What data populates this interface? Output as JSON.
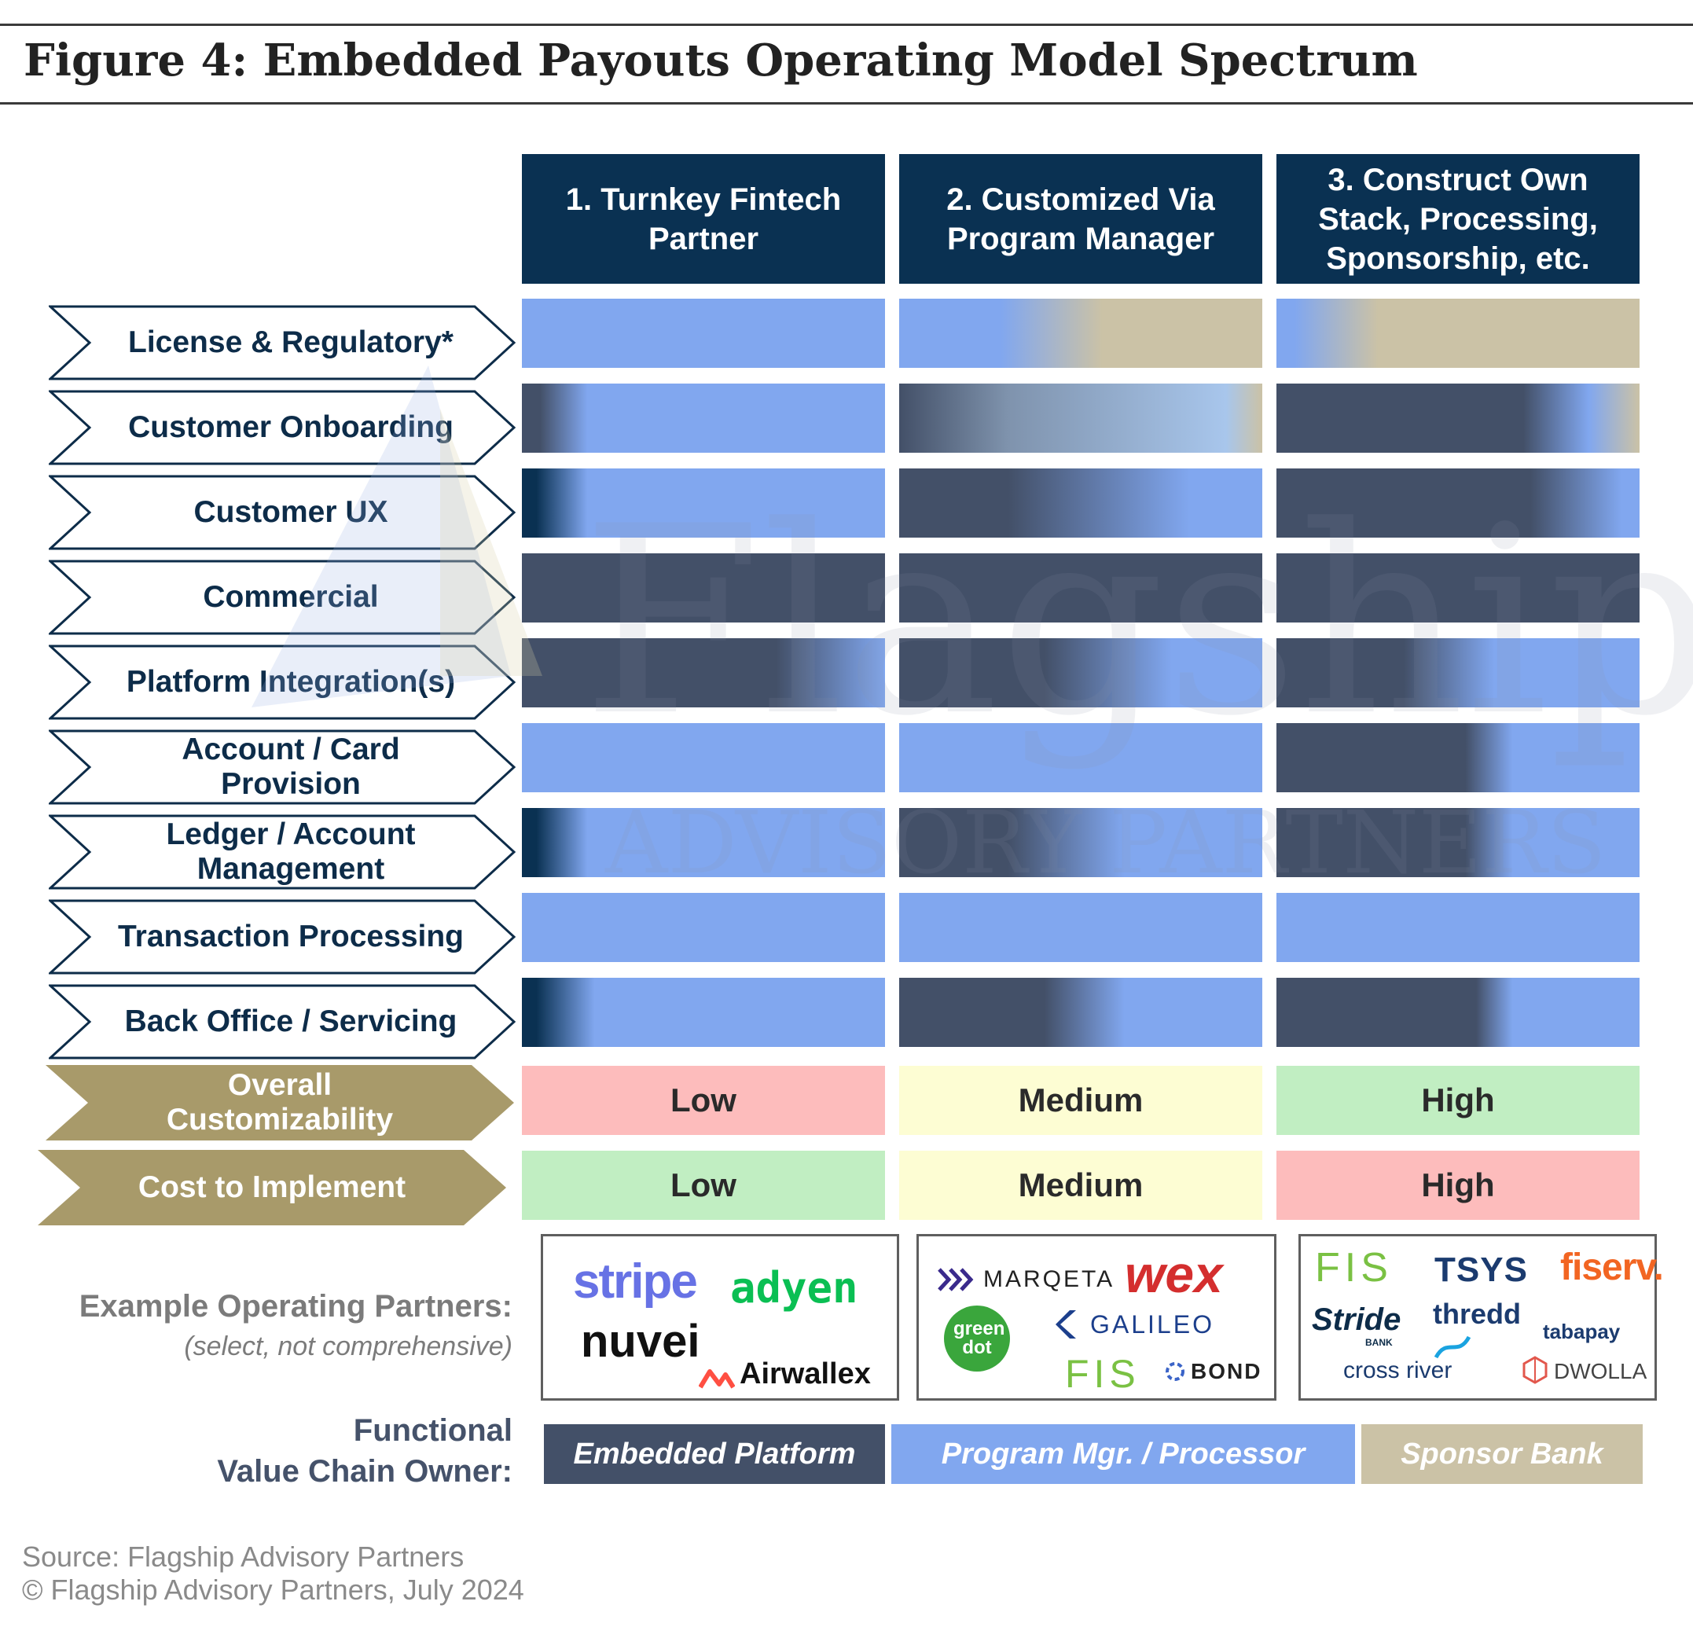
{
  "title": "Figure 4: Embedded Payouts Operating Model Spectrum",
  "columns": [
    "1. Turnkey Fintech\nPartner",
    "2. Customized Via\nProgram Manager",
    "3. Construct Own\nStack, Processing,\nSponsorship, etc."
  ],
  "rows": [
    "License & Regulatory*",
    "Customer Onboarding",
    "Customer UX",
    "Commercial",
    "Platform Integration(s)",
    "Account / Card\nProvision",
    "Ledger / Account\nManagement",
    "Transaction Processing",
    "Back Office / Servicing"
  ],
  "overall": {
    "label": "Overall\nCustomizability",
    "values": [
      "Low",
      "Medium",
      "High"
    ]
  },
  "cost": {
    "label": "Cost to Implement",
    "values": [
      "Low",
      "Medium",
      "High"
    ]
  },
  "partners": {
    "label": "Example Operating Partners:",
    "note": "(select, not comprehensive)",
    "col1": [
      "stripe",
      "adyen",
      "nuvei",
      "Airwallex"
    ],
    "col2": [
      "MARQETA",
      "wex",
      "green dot",
      "GALILEO",
      "FIS",
      "BOND"
    ],
    "col3": [
      "FIS",
      "TSYS",
      "fiserv.",
      "Stride",
      "BANK",
      "thredd",
      "tabapay",
      "cross river",
      "DWOLLA"
    ]
  },
  "value_chain": {
    "label": "Functional\nValue Chain Owner:",
    "items": [
      "Embedded Platform",
      "Program Mgr. / Processor",
      "Sponsor Bank"
    ]
  },
  "watermark": {
    "line1": "Flagship",
    "line2": "ADVISORY PARTNERS"
  },
  "source": "Source: Flagship Advisory Partners",
  "copyright": "© Flagship Advisory Partners, July 2024",
  "colors": {
    "embedded_platform": "#435068",
    "program_manager": "#81a7ef",
    "sponsor_bank": "#cbc2a6",
    "header_navy": "#0a3152",
    "low": "#fdbcbc",
    "medium": "#fdfdd3",
    "high": "#c1eec2",
    "gold": "#a89a6a"
  }
}
